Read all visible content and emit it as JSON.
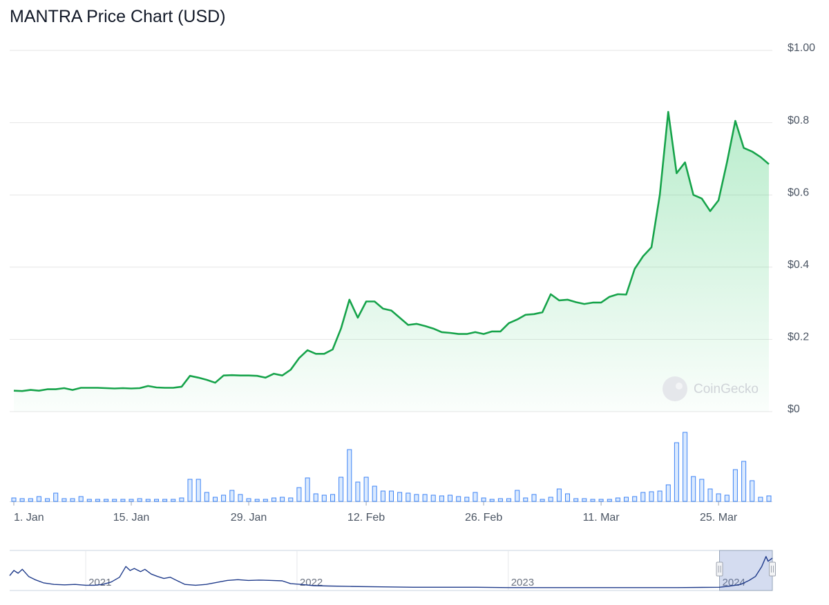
{
  "chart_data": [
    {
      "type": "area",
      "title": "MANTRA Price Chart (USD)",
      "currency": "USD",
      "watermark": "CoinGecko",
      "ylim": [
        0,
        1
      ],
      "yticks": [
        {
          "value": 0,
          "label": "$0"
        },
        {
          "value": 0.2,
          "label": "$0.2"
        },
        {
          "value": 0.4,
          "label": "$0.4"
        },
        {
          "value": 0.6,
          "label": "$0.6"
        },
        {
          "value": 0.8,
          "label": "$0.8"
        },
        {
          "value": 1.0,
          "label": "$1.00"
        }
      ],
      "xticks": [
        {
          "day": 0,
          "label": "1. Jan"
        },
        {
          "day": 14,
          "label": "15. Jan"
        },
        {
          "day": 28,
          "label": "29. Jan"
        },
        {
          "day": 42,
          "label": "12. Feb"
        },
        {
          "day": 56,
          "label": "26. Feb"
        },
        {
          "day": 70,
          "label": "11. Mar"
        },
        {
          "day": 84,
          "label": "25. Mar"
        }
      ],
      "x_unit": "day of year 2024 (0 = 1. Jan)",
      "line_color": "#16a34a",
      "fill_color": "#22c55e",
      "grid": true,
      "series": [
        {
          "values": [
            [
              0,
              0.058
            ],
            [
              1,
              0.057
            ],
            [
              2,
              0.06
            ],
            [
              3,
              0.058
            ],
            [
              4,
              0.062
            ],
            [
              5,
              0.062
            ],
            [
              6,
              0.065
            ],
            [
              7,
              0.06
            ],
            [
              8,
              0.066
            ],
            [
              9,
              0.066
            ],
            [
              10,
              0.066
            ],
            [
              11,
              0.065
            ],
            [
              12,
              0.064
            ],
            [
              13,
              0.065
            ],
            [
              14,
              0.064
            ],
            [
              15,
              0.065
            ],
            [
              16,
              0.071
            ],
            [
              17,
              0.067
            ],
            [
              18,
              0.066
            ],
            [
              19,
              0.066
            ],
            [
              20,
              0.069
            ],
            [
              21,
              0.099
            ],
            [
              22,
              0.094
            ],
            [
              23,
              0.088
            ],
            [
              24,
              0.08
            ],
            [
              25,
              0.1
            ],
            [
              26,
              0.101
            ],
            [
              27,
              0.1
            ],
            [
              28,
              0.1
            ],
            [
              29,
              0.099
            ],
            [
              30,
              0.094
            ],
            [
              31,
              0.105
            ],
            [
              32,
              0.1
            ],
            [
              33,
              0.116
            ],
            [
              34,
              0.148
            ],
            [
              35,
              0.17
            ],
            [
              36,
              0.16
            ],
            [
              37,
              0.16
            ],
            [
              38,
              0.172
            ],
            [
              39,
              0.23
            ],
            [
              40,
              0.31
            ],
            [
              41,
              0.26
            ],
            [
              42,
              0.305
            ],
            [
              43,
              0.305
            ],
            [
              44,
              0.285
            ],
            [
              45,
              0.28
            ],
            [
              46,
              0.26
            ],
            [
              47,
              0.24
            ],
            [
              48,
              0.243
            ],
            [
              49,
              0.237
            ],
            [
              50,
              0.23
            ],
            [
              51,
              0.22
            ],
            [
              52,
              0.218
            ],
            [
              53,
              0.215
            ],
            [
              54,
              0.215
            ],
            [
              55,
              0.22
            ],
            [
              56,
              0.215
            ],
            [
              57,
              0.222
            ],
            [
              58,
              0.222
            ],
            [
              59,
              0.245
            ],
            [
              60,
              0.255
            ],
            [
              61,
              0.268
            ],
            [
              62,
              0.27
            ],
            [
              63,
              0.275
            ],
            [
              64,
              0.325
            ],
            [
              65,
              0.308
            ],
            [
              66,
              0.31
            ],
            [
              67,
              0.303
            ],
            [
              68,
              0.298
            ],
            [
              69,
              0.302
            ],
            [
              70,
              0.302
            ],
            [
              71,
              0.318
            ],
            [
              72,
              0.325
            ],
            [
              73,
              0.324
            ],
            [
              74,
              0.395
            ],
            [
              75,
              0.43
            ],
            [
              76,
              0.455
            ],
            [
              77,
              0.6
            ],
            [
              78,
              0.83
            ],
            [
              79,
              0.66
            ],
            [
              80,
              0.69
            ],
            [
              81,
              0.6
            ],
            [
              82,
              0.59
            ],
            [
              83,
              0.555
            ],
            [
              84,
              0.585
            ],
            [
              85,
              0.69
            ],
            [
              86,
              0.805
            ],
            [
              87,
              0.73
            ],
            [
              88,
              0.72
            ],
            [
              89,
              0.705
            ],
            [
              90,
              0.685
            ]
          ]
        }
      ]
    },
    {
      "type": "bar",
      "title": "",
      "series": [
        {
          "values": [
            0.05,
            0.04,
            0.04,
            0.07,
            0.04,
            0.12,
            0.04,
            0.04,
            0.07,
            0.03,
            0.03,
            0.03,
            0.03,
            0.03,
            0.03,
            0.04,
            0.03,
            0.03,
            0.03,
            0.03,
            0.05,
            0.32,
            0.32,
            0.13,
            0.06,
            0.09,
            0.16,
            0.1,
            0.04,
            0.03,
            0.03,
            0.05,
            0.06,
            0.05,
            0.2,
            0.34,
            0.11,
            0.09,
            0.1,
            0.35,
            0.75,
            0.28,
            0.35,
            0.22,
            0.15,
            0.15,
            0.13,
            0.12,
            0.1,
            0.1,
            0.09,
            0.08,
            0.09,
            0.07,
            0.06,
            0.13,
            0.05,
            0.03,
            0.04,
            0.04,
            0.16,
            0.05,
            0.1,
            0.03,
            0.06,
            0.18,
            0.11,
            0.04,
            0.04,
            0.03,
            0.03,
            0.03,
            0.05,
            0.06,
            0.07,
            0.13,
            0.14,
            0.15,
            0.24,
            0.85,
            1.0,
            0.36,
            0.32,
            0.18,
            0.11,
            0.09,
            0.46,
            0.58,
            0.3,
            0.06,
            0.08
          ]
        }
      ],
      "ylim": [
        0,
        1
      ],
      "bar_color": "#3b82f6",
      "yaxis": "hidden, relative scale"
    },
    {
      "type": "line",
      "title": "",
      "xticks": [
        {
          "year": 2021,
          "label": "2021"
        },
        {
          "year": 2022,
          "label": "2022"
        },
        {
          "year": 2023,
          "label": "2023"
        },
        {
          "year": 2024,
          "label": "2024"
        }
      ],
      "x_unit": "year (fractional)",
      "xlim": [
        2020.64,
        2024.25
      ],
      "ylim": [
        0,
        0.9
      ],
      "selection": [
        2024.0,
        2024.25
      ],
      "line_color": "#1e3a8a",
      "series": [
        {
          "values": [
            [
              2020.64,
              0.32
            ],
            [
              2020.66,
              0.45
            ],
            [
              2020.68,
              0.38
            ],
            [
              2020.7,
              0.48
            ],
            [
              2020.73,
              0.3
            ],
            [
              2020.76,
              0.22
            ],
            [
              2020.8,
              0.14
            ],
            [
              2020.85,
              0.1
            ],
            [
              2020.9,
              0.09
            ],
            [
              2020.95,
              0.1
            ],
            [
              2021.0,
              0.08
            ],
            [
              2021.04,
              0.08
            ],
            [
              2021.08,
              0.1
            ],
            [
              2021.12,
              0.16
            ],
            [
              2021.16,
              0.28
            ],
            [
              2021.19,
              0.55
            ],
            [
              2021.21,
              0.45
            ],
            [
              2021.23,
              0.5
            ],
            [
              2021.26,
              0.42
            ],
            [
              2021.28,
              0.48
            ],
            [
              2021.31,
              0.36
            ],
            [
              2021.34,
              0.3
            ],
            [
              2021.37,
              0.25
            ],
            [
              2021.4,
              0.28
            ],
            [
              2021.43,
              0.2
            ],
            [
              2021.47,
              0.1
            ],
            [
              2021.52,
              0.08
            ],
            [
              2021.57,
              0.1
            ],
            [
              2021.62,
              0.15
            ],
            [
              2021.67,
              0.2
            ],
            [
              2021.72,
              0.22
            ],
            [
              2021.77,
              0.2
            ],
            [
              2021.82,
              0.21
            ],
            [
              2021.88,
              0.2
            ],
            [
              2021.93,
              0.19
            ],
            [
              2021.97,
              0.12
            ],
            [
              2022.02,
              0.1
            ],
            [
              2022.08,
              0.07
            ],
            [
              2022.15,
              0.06
            ],
            [
              2022.25,
              0.05
            ],
            [
              2022.4,
              0.04
            ],
            [
              2022.55,
              0.03
            ],
            [
              2022.7,
              0.03
            ],
            [
              2022.85,
              0.03
            ],
            [
              2023.0,
              0.02
            ],
            [
              2023.2,
              0.02
            ],
            [
              2023.4,
              0.02
            ],
            [
              2023.6,
              0.02
            ],
            [
              2023.8,
              0.02
            ],
            [
              2024.0,
              0.03
            ],
            [
              2024.05,
              0.06
            ],
            [
              2024.1,
              0.1
            ],
            [
              2024.14,
              0.2
            ],
            [
              2024.17,
              0.3
            ],
            [
              2024.2,
              0.55
            ],
            [
              2024.22,
              0.8
            ],
            [
              2024.23,
              0.68
            ],
            [
              2024.25,
              0.76
            ]
          ]
        }
      ]
    }
  ]
}
